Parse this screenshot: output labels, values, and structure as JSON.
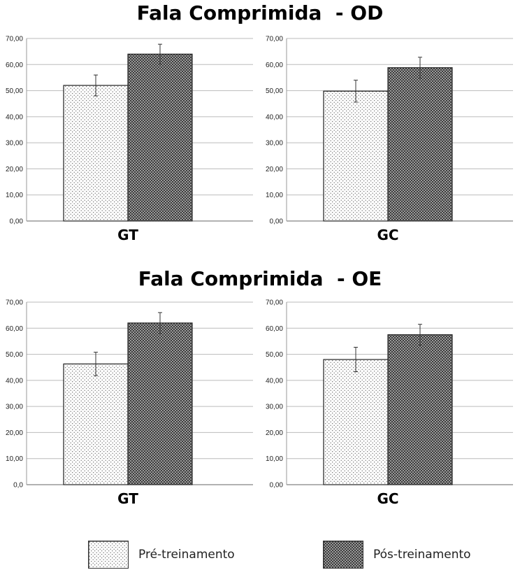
{
  "sections": [
    {
      "title": "Fala Comprimida  - OD"
    },
    {
      "title": "Fala Comprimida  - OE"
    }
  ],
  "legend": [
    {
      "label": "Pré-treinamento"
    },
    {
      "label": "Pós-treinamento"
    }
  ],
  "chart_data": [
    {
      "type": "bar",
      "title": "Fala Comprimida  - OD",
      "categories": [
        "GT"
      ],
      "ylim": [
        0,
        70
      ],
      "yticks": [
        "0,00",
        "10,00",
        "20,00",
        "30,00",
        "40,00",
        "50,00",
        "60,00",
        "70,00"
      ],
      "grid": true,
      "series": [
        {
          "name": "Pré-treinamento",
          "values": [
            52.0
          ],
          "error": [
            4.0
          ]
        },
        {
          "name": "Pós-treinamento",
          "values": [
            64.0
          ],
          "error": [
            3.8
          ]
        }
      ]
    },
    {
      "type": "bar",
      "title": "Fala Comprimida  - OD",
      "categories": [
        "GC"
      ],
      "ylim": [
        0,
        70
      ],
      "yticks": [
        "0,00",
        "10,00",
        "20,00",
        "30,00",
        "40,00",
        "50,00",
        "60,00",
        "70,00"
      ],
      "grid": true,
      "series": [
        {
          "name": "Pré-treinamento",
          "values": [
            49.8
          ],
          "error": [
            4.2
          ]
        },
        {
          "name": "Pós-treinamento",
          "values": [
            58.8
          ],
          "error": [
            4.0
          ]
        }
      ]
    },
    {
      "type": "bar",
      "title": "Fala Comprimida  - OE",
      "categories": [
        "GT"
      ],
      "ylim": [
        0,
        70
      ],
      "yticks": [
        "0,0",
        "10,00",
        "20,00",
        "30,00",
        "40,00",
        "50,00",
        "60,00",
        "70,00"
      ],
      "grid": true,
      "series": [
        {
          "name": "Pré-treinamento",
          "values": [
            46.3
          ],
          "error": [
            4.5
          ]
        },
        {
          "name": "Pós-treinamento",
          "values": [
            62.0
          ],
          "error": [
            4.0
          ]
        }
      ]
    },
    {
      "type": "bar",
      "title": "Fala Comprimida  - OE",
      "categories": [
        "GC"
      ],
      "ylim": [
        0,
        70
      ],
      "yticks": [
        "0,00",
        "10,00",
        "20,00",
        "30,00",
        "40,00",
        "50,00",
        "60,00",
        "70,00"
      ],
      "grid": true,
      "series": [
        {
          "name": "Pré-treinamento",
          "values": [
            48.0
          ],
          "error": [
            4.7
          ]
        },
        {
          "name": "Pós-treinamento",
          "values": [
            57.5
          ],
          "error": [
            4.0
          ]
        }
      ]
    }
  ]
}
